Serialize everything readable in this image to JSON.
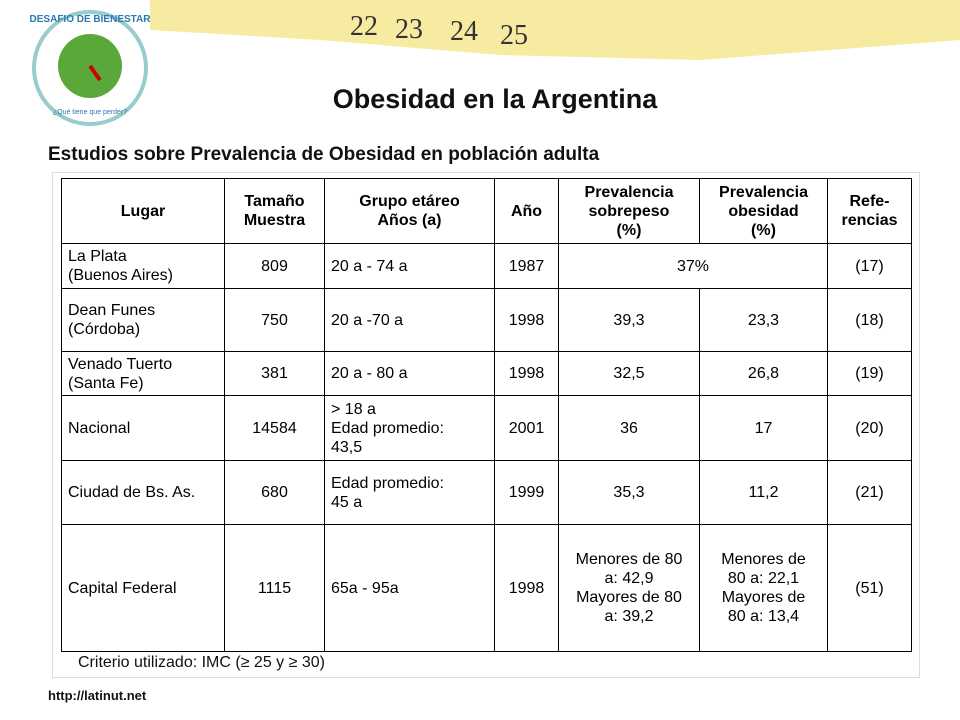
{
  "header": {
    "title": "Obesidad en la Argentina",
    "subtitle": "Estudios sobre Prevalencia de Obesidad en población adulta"
  },
  "logo": {
    "name": "DESAFIO DE BIENESTAR",
    "slogan": "¿Qué tiene que perder?"
  },
  "tape": [
    "22",
    "23",
    "24",
    "25"
  ],
  "table": {
    "columns": [
      "Lugar",
      "Tamaño\nMuestra",
      "Grupo etáreo\nAños (a)",
      "Año",
      "Prevalencia\nsobrepeso\n(%)",
      "Prevalencia\nobesidad\n(%)",
      "Refe-\nrencias"
    ],
    "rows": [
      [
        "La Plata\n(Buenos Aires)",
        "809",
        "20 a - 74 a",
        "1987",
        "37%",
        "(17)"
      ],
      [
        "Dean Funes\n(Córdoba)",
        "750",
        "20 a -70 a",
        "1998",
        "39,3",
        "23,3",
        "(18)"
      ],
      [
        "Venado Tuerto\n(Santa Fe)",
        "381",
        "20 a - 80 a",
        "1998",
        "32,5",
        "26,8",
        "(19)"
      ],
      [
        "Nacional",
        "14584",
        "> 18 a\nEdad promedio:\n43,5",
        "2001",
        "36",
        "17",
        "(20)"
      ],
      [
        "Ciudad de Bs. As.",
        "680",
        "Edad promedio:\n45 a",
        "1999",
        "35,3",
        "11,2",
        "(21)"
      ],
      [
        "Capital Federal",
        "1115",
        "65a - 95a",
        "1998",
        "Menores de 80\na: 42,9\nMayores de 80\na: 39,2",
        "Menores de\n80 a: 22,1\nMayores de\n80 a: 13,4",
        "(51)"
      ]
    ],
    "note": "Criterio utilizado: IMC (≥ 25 y ≥ 30)"
  },
  "footer": {
    "url": "http://latinut.net"
  }
}
